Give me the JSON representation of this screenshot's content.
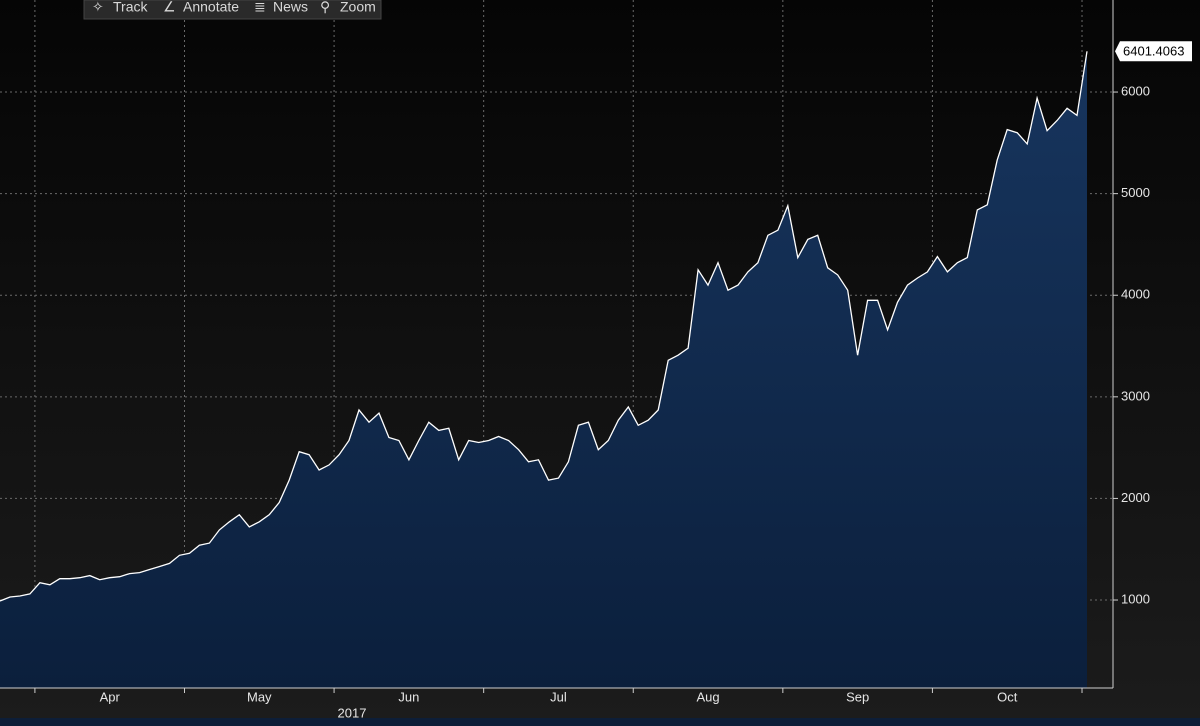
{
  "toolbar": [
    "Track",
    "Annotate",
    "News",
    "Zoom"
  ],
  "chart_data": {
    "type": "area",
    "year_label": "2017",
    "categories": [
      null,
      null,
      null,
      null,
      null,
      null,
      null,
      null,
      null,
      null,
      null,
      "Apr",
      null,
      null,
      null,
      null,
      null,
      null,
      null,
      null,
      null,
      null,
      null,
      null,
      null,
      null,
      "May",
      null,
      null,
      null,
      null,
      null,
      null,
      null,
      null,
      null,
      null,
      null,
      null,
      null,
      null,
      "Jun",
      null,
      null,
      null,
      null,
      null,
      null,
      null,
      null,
      null,
      null,
      null,
      null,
      null,
      null,
      "Jul",
      null,
      null,
      null,
      null,
      null,
      null,
      null,
      null,
      null,
      null,
      null,
      null,
      null,
      null,
      "Aug",
      null,
      null,
      null,
      null,
      null,
      null,
      null,
      null,
      null,
      null,
      null,
      null,
      null,
      null,
      "Sep",
      null,
      null,
      null,
      null,
      null,
      null,
      null,
      null,
      null,
      null,
      null,
      null,
      null,
      null,
      "Oct",
      null,
      null,
      null,
      null,
      null,
      null,
      null,
      null
    ],
    "values": [
      990,
      1030,
      1040,
      1060,
      1170,
      1150,
      1210,
      1210,
      1220,
      1240,
      1200,
      1220,
      1230,
      1260,
      1270,
      1300,
      1330,
      1360,
      1440,
      1460,
      1540,
      1560,
      1690,
      1770,
      1840,
      1720,
      1770,
      1840,
      1960,
      2180,
      2460,
      2430,
      2280,
      2330,
      2430,
      2570,
      2870,
      2750,
      2840,
      2600,
      2570,
      2380,
      2570,
      2750,
      2670,
      2690,
      2380,
      2570,
      2550,
      2570,
      2610,
      2570,
      2480,
      2360,
      2380,
      2180,
      2200,
      2360,
      2720,
      2750,
      2480,
      2570,
      2770,
      2900,
      2720,
      2770,
      2870,
      3360,
      3410,
      3480,
      4250,
      4100,
      4320,
      4050,
      4100,
      4230,
      4320,
      4590,
      4640,
      4880,
      4370,
      4550,
      4590,
      4270,
      4200,
      4050,
      3410,
      3950,
      3950,
      3660,
      3930,
      4100,
      4170,
      4230,
      4380,
      4230,
      4320,
      4370,
      4840,
      4890,
      5330,
      5630,
      5600,
      5490,
      5940,
      5620,
      5720,
      5840,
      5770,
      6401.4063
    ],
    "ylim": [
      134,
      6906
    ],
    "yticks": [
      1000,
      2000,
      3000,
      4000,
      5000,
      6000
    ],
    "grid": true,
    "color": "#ffffff",
    "fill": "#10284a"
  }
}
